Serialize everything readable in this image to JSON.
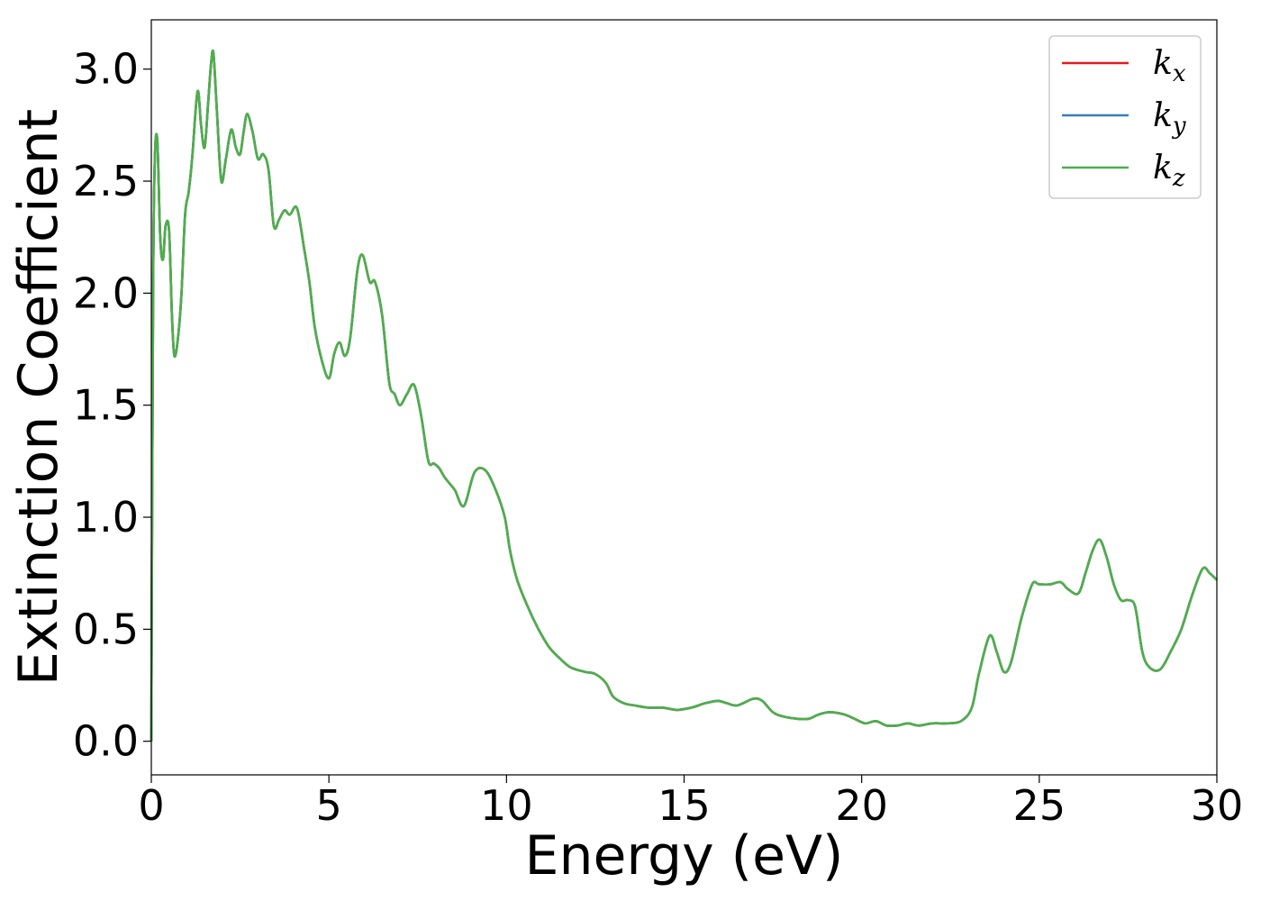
{
  "chart_data": {
    "type": "line",
    "xlabel": "Energy (eV)",
    "ylabel": "Extinction Coefficient",
    "xlim": [
      0,
      30
    ],
    "ylim": [
      -0.15,
      3.22
    ],
    "xticks": [
      "0",
      "5",
      "10",
      "15",
      "20",
      "25",
      "30"
    ],
    "yticks": [
      "0.0",
      "0.5",
      "1.0",
      "1.5",
      "2.0",
      "2.5",
      "3.0"
    ],
    "grid": false,
    "legend_position": "top-right",
    "legend": [
      {
        "base": "k",
        "sub": "x",
        "color": "#e41a1c"
      },
      {
        "base": "k",
        "sub": "y",
        "color": "#377eb8"
      },
      {
        "base": "k",
        "sub": "z",
        "color": "#4daf4a"
      }
    ],
    "x": [
      0,
      0.05,
      0.1,
      0.17,
      0.25,
      0.33,
      0.4,
      0.5,
      0.58,
      0.65,
      0.75,
      0.85,
      0.95,
      1.05,
      1.15,
      1.3,
      1.4,
      1.5,
      1.6,
      1.68,
      1.75,
      1.85,
      1.97,
      2.1,
      2.25,
      2.38,
      2.5,
      2.6,
      2.7,
      2.85,
      3.0,
      3.15,
      3.3,
      3.45,
      3.6,
      3.75,
      3.9,
      4.1,
      4.3,
      4.45,
      4.6,
      4.8,
      5.0,
      5.15,
      5.3,
      5.45,
      5.6,
      5.8,
      5.95,
      6.15,
      6.3,
      6.5,
      6.7,
      6.85,
      7.0,
      7.2,
      7.4,
      7.6,
      7.8,
      7.95,
      8.1,
      8.25,
      8.4,
      8.55,
      8.8,
      9.1,
      9.4,
      9.7,
      9.95,
      10.1,
      10.3,
      10.6,
      10.9,
      11.2,
      11.5,
      11.8,
      12.2,
      12.5,
      12.8,
      13.0,
      13.3,
      13.6,
      14.0,
      14.4,
      14.8,
      15.2,
      15.6,
      15.95,
      16.2,
      16.5,
      16.95,
      17.2,
      17.5,
      17.8,
      18.2,
      18.5,
      18.8,
      19.1,
      19.5,
      19.8,
      20.1,
      20.4,
      20.7,
      21.0,
      21.3,
      21.6,
      22.0,
      22.4,
      22.8,
      23.1,
      23.3,
      23.6,
      23.8,
      24.0,
      24.2,
      24.5,
      24.8,
      25.0,
      25.3,
      25.6,
      25.8,
      26.1,
      26.3,
      26.5,
      26.7,
      26.9,
      27.1,
      27.3,
      27.5,
      27.7,
      27.9,
      28.1,
      28.4,
      28.7,
      29.0,
      29.3,
      29.6,
      29.8,
      30.0
    ],
    "series": [
      {
        "color": "#e41a1c",
        "values": [
          0.0,
          2.0,
          2.6,
          2.68,
          2.25,
          2.15,
          2.3,
          2.28,
          1.9,
          1.72,
          1.8,
          2.0,
          2.35,
          2.45,
          2.6,
          2.9,
          2.75,
          2.65,
          2.85,
          3.02,
          3.07,
          2.8,
          2.5,
          2.6,
          2.73,
          2.65,
          2.62,
          2.72,
          2.8,
          2.72,
          2.6,
          2.62,
          2.55,
          2.3,
          2.33,
          2.37,
          2.35,
          2.38,
          2.2,
          2.05,
          1.85,
          1.7,
          1.62,
          1.73,
          1.78,
          1.72,
          1.8,
          2.1,
          2.17,
          2.05,
          2.05,
          1.9,
          1.6,
          1.55,
          1.5,
          1.55,
          1.59,
          1.45,
          1.25,
          1.24,
          1.22,
          1.18,
          1.15,
          1.12,
          1.05,
          1.2,
          1.21,
          1.12,
          1.0,
          0.85,
          0.72,
          0.6,
          0.5,
          0.42,
          0.37,
          0.33,
          0.31,
          0.3,
          0.26,
          0.2,
          0.17,
          0.16,
          0.15,
          0.15,
          0.14,
          0.15,
          0.17,
          0.18,
          0.17,
          0.16,
          0.19,
          0.18,
          0.13,
          0.11,
          0.1,
          0.1,
          0.12,
          0.13,
          0.12,
          0.1,
          0.08,
          0.09,
          0.07,
          0.07,
          0.08,
          0.07,
          0.08,
          0.08,
          0.09,
          0.15,
          0.3,
          0.47,
          0.4,
          0.31,
          0.35,
          0.55,
          0.7,
          0.7,
          0.7,
          0.71,
          0.68,
          0.66,
          0.75,
          0.85,
          0.9,
          0.82,
          0.7,
          0.63,
          0.63,
          0.6,
          0.4,
          0.33,
          0.32,
          0.4,
          0.5,
          0.65,
          0.77,
          0.75,
          0.72
        ]
      },
      {
        "color": "#377eb8",
        "values": [
          0.0,
          2.0,
          2.6,
          2.68,
          2.25,
          2.15,
          2.3,
          2.28,
          1.9,
          1.72,
          1.8,
          2.0,
          2.35,
          2.45,
          2.6,
          2.9,
          2.75,
          2.65,
          2.85,
          3.02,
          3.07,
          2.8,
          2.5,
          2.6,
          2.73,
          2.65,
          2.62,
          2.72,
          2.8,
          2.72,
          2.6,
          2.62,
          2.55,
          2.3,
          2.33,
          2.37,
          2.35,
          2.38,
          2.2,
          2.05,
          1.85,
          1.7,
          1.62,
          1.73,
          1.78,
          1.72,
          1.8,
          2.1,
          2.17,
          2.05,
          2.05,
          1.9,
          1.6,
          1.55,
          1.5,
          1.55,
          1.59,
          1.45,
          1.25,
          1.24,
          1.22,
          1.18,
          1.15,
          1.12,
          1.05,
          1.2,
          1.21,
          1.12,
          1.0,
          0.85,
          0.72,
          0.6,
          0.5,
          0.42,
          0.37,
          0.33,
          0.31,
          0.3,
          0.26,
          0.2,
          0.17,
          0.16,
          0.15,
          0.15,
          0.14,
          0.15,
          0.17,
          0.18,
          0.17,
          0.16,
          0.19,
          0.18,
          0.13,
          0.11,
          0.1,
          0.1,
          0.12,
          0.13,
          0.12,
          0.1,
          0.08,
          0.09,
          0.07,
          0.07,
          0.08,
          0.07,
          0.08,
          0.08,
          0.09,
          0.15,
          0.3,
          0.47,
          0.4,
          0.31,
          0.35,
          0.55,
          0.7,
          0.7,
          0.7,
          0.71,
          0.68,
          0.66,
          0.75,
          0.85,
          0.9,
          0.82,
          0.7,
          0.63,
          0.63,
          0.6,
          0.4,
          0.33,
          0.32,
          0.4,
          0.5,
          0.65,
          0.77,
          0.75,
          0.72
        ]
      },
      {
        "color": "#4daf4a",
        "values": [
          0.0,
          2.0,
          2.6,
          2.68,
          2.25,
          2.15,
          2.3,
          2.28,
          1.9,
          1.72,
          1.8,
          2.0,
          2.35,
          2.45,
          2.6,
          2.9,
          2.75,
          2.65,
          2.85,
          3.02,
          3.07,
          2.8,
          2.5,
          2.6,
          2.73,
          2.65,
          2.62,
          2.72,
          2.8,
          2.72,
          2.6,
          2.62,
          2.55,
          2.3,
          2.33,
          2.37,
          2.35,
          2.38,
          2.2,
          2.05,
          1.85,
          1.7,
          1.62,
          1.73,
          1.78,
          1.72,
          1.8,
          2.1,
          2.17,
          2.05,
          2.05,
          1.9,
          1.6,
          1.55,
          1.5,
          1.55,
          1.59,
          1.45,
          1.25,
          1.24,
          1.22,
          1.18,
          1.15,
          1.12,
          1.05,
          1.2,
          1.21,
          1.12,
          1.0,
          0.85,
          0.72,
          0.6,
          0.5,
          0.42,
          0.37,
          0.33,
          0.31,
          0.3,
          0.26,
          0.2,
          0.17,
          0.16,
          0.15,
          0.15,
          0.14,
          0.15,
          0.17,
          0.18,
          0.17,
          0.16,
          0.19,
          0.18,
          0.13,
          0.11,
          0.1,
          0.1,
          0.12,
          0.13,
          0.12,
          0.1,
          0.08,
          0.09,
          0.07,
          0.07,
          0.08,
          0.07,
          0.08,
          0.08,
          0.09,
          0.15,
          0.3,
          0.47,
          0.4,
          0.31,
          0.35,
          0.55,
          0.7,
          0.7,
          0.7,
          0.71,
          0.68,
          0.66,
          0.75,
          0.85,
          0.9,
          0.82,
          0.7,
          0.63,
          0.63,
          0.6,
          0.4,
          0.33,
          0.32,
          0.4,
          0.5,
          0.65,
          0.77,
          0.75,
          0.72
        ]
      }
    ]
  }
}
